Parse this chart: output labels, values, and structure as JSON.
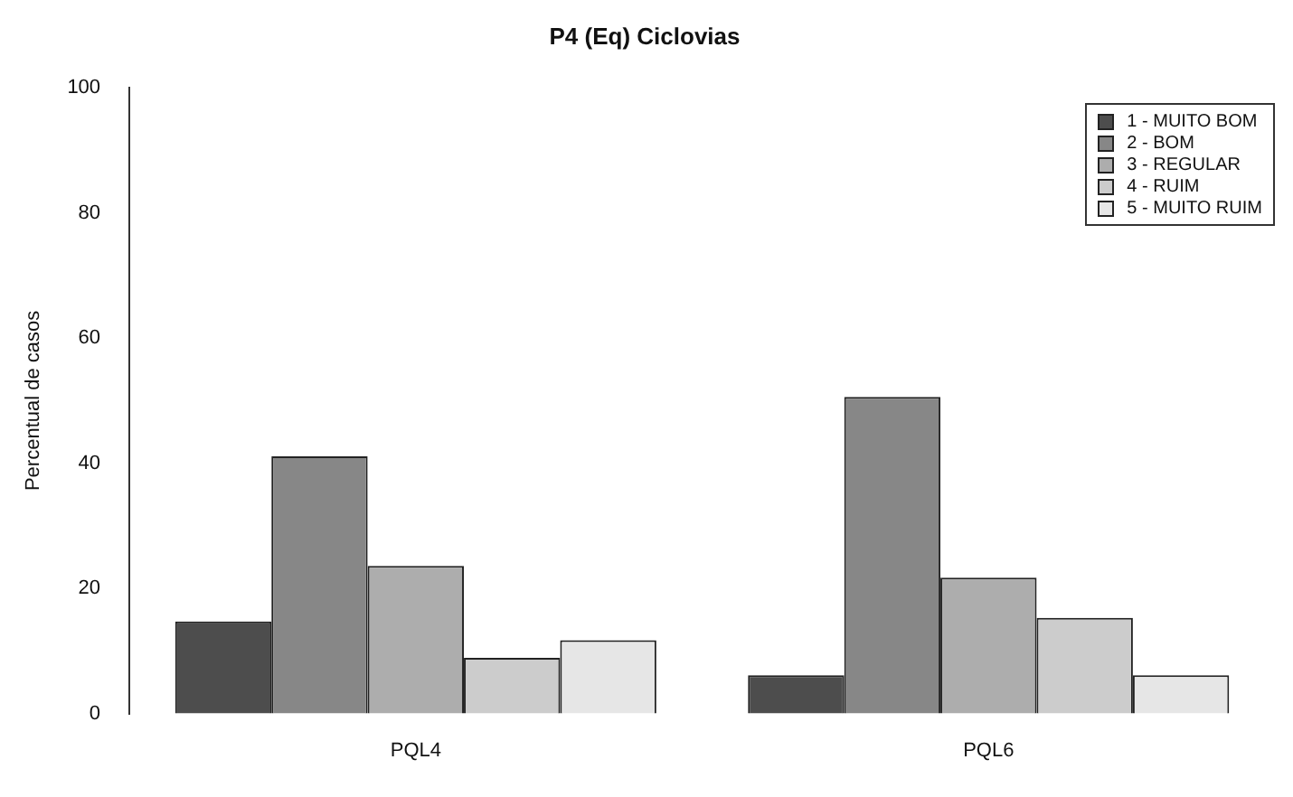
{
  "chart_data": {
    "type": "bar",
    "title": "P4 (Eq) Ciclovias",
    "ylabel": "Percentual de casos",
    "categories": [
      "PQL4",
      "PQL6"
    ],
    "series": [
      {
        "name": "1 - MUITO BOM",
        "color": "#4d4d4d",
        "values": [
          14.7,
          6.1
        ]
      },
      {
        "name": "2 - BOM",
        "color": "#878787",
        "values": [
          41.1,
          50.6
        ]
      },
      {
        "name": "3 - REGULAR",
        "color": "#adadad",
        "values": [
          23.6,
          21.7
        ]
      },
      {
        "name": "4 - RUIM",
        "color": "#cccccc",
        "values": [
          8.9,
          15.3
        ]
      },
      {
        "name": "5 - MUITO RUIM",
        "color": "#e6e6e6",
        "values": [
          11.7,
          6.1
        ]
      }
    ],
    "ylim": [
      0,
      100
    ],
    "yticks": [
      0,
      20,
      40,
      60,
      80,
      100
    ],
    "grid": false,
    "legend": "top right"
  }
}
